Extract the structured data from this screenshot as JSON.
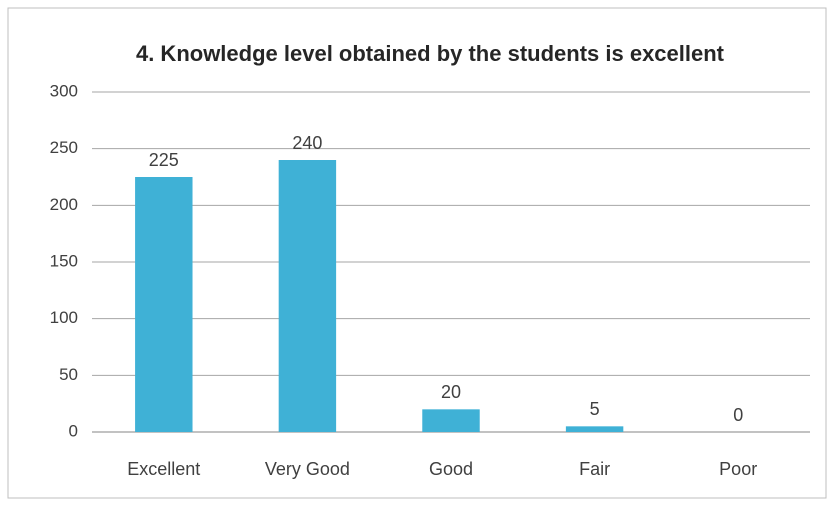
{
  "chart_data": {
    "type": "bar",
    "title": "4. Knowledge level obtained by the students is excellent",
    "categories": [
      "Excellent",
      "Very Good",
      "Good",
      "Fair",
      "Poor"
    ],
    "values": [
      225,
      240,
      20,
      5,
      0
    ],
    "color": "#3fb1d6",
    "ylim": [
      0,
      300
    ],
    "yticks": [
      0,
      50,
      100,
      150,
      200,
      250,
      300
    ],
    "grid": true
  }
}
